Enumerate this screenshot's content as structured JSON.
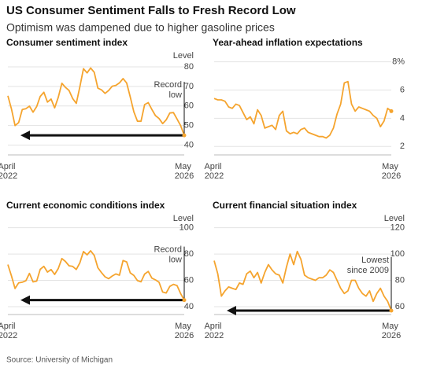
{
  "title": "US Consumer Sentiment Falls to Fresh Record Low",
  "subtitle": "Optimism was dampened due to higher gasoline prices",
  "source": "Source: University of Michigan",
  "chart_data": [
    {
      "type": "line",
      "title": "Consumer sentiment index",
      "unit_label": "Level",
      "categories": [
        "April 2022",
        null,
        null,
        null,
        null,
        null,
        null,
        null,
        null,
        null,
        null,
        null,
        null,
        null,
        null,
        null,
        null,
        null,
        null,
        null,
        null,
        null,
        null,
        null,
        null,
        null,
        null,
        null,
        null,
        null,
        null,
        null,
        null,
        null,
        null,
        null,
        null,
        null,
        null,
        null,
        null,
        null,
        null,
        null,
        null,
        null,
        null,
        null,
        null,
        "May 2026"
      ],
      "values": [
        65.2,
        58.4,
        50.0,
        51.5,
        58.2,
        58.6,
        59.9,
        56.8,
        59.7,
        64.9,
        67.0,
        62.0,
        63.5,
        59.0,
        64.4,
        71.6,
        69.5,
        67.9,
        63.8,
        61.3,
        69.7,
        79.0,
        76.9,
        79.4,
        77.2,
        69.1,
        68.2,
        66.4,
        67.9,
        70.1,
        70.5,
        71.8,
        74.0,
        71.7,
        64.7,
        57.0,
        52.2,
        52.2,
        60.7,
        61.7,
        58.2,
        55.1,
        53.6,
        51.0,
        52.9,
        56.4,
        56.6,
        53.3,
        50.0,
        45.0
      ],
      "color": "#f5a42e",
      "ylim": [
        35,
        84
      ],
      "yticks": [
        40,
        50,
        60,
        70,
        80
      ],
      "grid": true,
      "annotation": [
        "Record",
        "low"
      ]
    },
    {
      "type": "line",
      "title": "Year-ahead inflation expectations",
      "categories": [
        "April 2022",
        null,
        null,
        null,
        null,
        null,
        null,
        null,
        null,
        null,
        null,
        null,
        null,
        null,
        null,
        null,
        null,
        null,
        null,
        null,
        null,
        null,
        null,
        null,
        null,
        null,
        null,
        null,
        null,
        null,
        null,
        null,
        null,
        null,
        null,
        null,
        null,
        null,
        null,
        null,
        null,
        null,
        null,
        null,
        null,
        null,
        null,
        null,
        null,
        "May 2026"
      ],
      "values": [
        5.4,
        5.3,
        5.3,
        5.2,
        4.8,
        4.7,
        5.0,
        4.9,
        4.4,
        3.9,
        4.1,
        3.6,
        4.6,
        4.2,
        3.3,
        3.4,
        3.5,
        3.2,
        4.2,
        4.5,
        3.1,
        2.9,
        3.0,
        2.9,
        3.2,
        3.3,
        3.0,
        2.9,
        2.8,
        2.7,
        2.7,
        2.6,
        2.8,
        3.3,
        4.3,
        5.0,
        6.5,
        6.6,
        5.0,
        4.5,
        4.8,
        4.7,
        4.6,
        4.5,
        4.2,
        4.0,
        3.4,
        3.8,
        4.7,
        4.5
      ],
      "color": "#f5a42e",
      "ylim": [
        1.4,
        8.2
      ],
      "yticks": [
        2,
        4,
        6,
        {
          "value": 8,
          "label": "8%"
        }
      ],
      "grid": true
    },
    {
      "type": "line",
      "title": "Current economic conditions index",
      "unit_label": "Level",
      "categories": [
        "April 2022",
        null,
        null,
        null,
        null,
        null,
        null,
        null,
        null,
        null,
        null,
        null,
        null,
        null,
        null,
        null,
        null,
        null,
        null,
        null,
        null,
        null,
        null,
        null,
        null,
        null,
        null,
        null,
        null,
        null,
        null,
        null,
        null,
        null,
        null,
        null,
        null,
        null,
        null,
        null,
        null,
        null,
        null,
        null,
        null,
        null,
        null,
        null,
        null,
        "May 2026"
      ],
      "values": [
        72.0,
        63.3,
        53.8,
        58.1,
        58.6,
        59.7,
        65.3,
        58.8,
        59.4,
        68.4,
        70.7,
        66.3,
        68.2,
        64.5,
        69.0,
        76.6,
        74.4,
        71.1,
        70.6,
        68.3,
        73.3,
        81.9,
        79.4,
        82.5,
        79.0,
        69.6,
        65.9,
        62.7,
        61.3,
        63.3,
        64.9,
        63.9,
        75.1,
        74.0,
        65.7,
        63.8,
        59.8,
        58.9,
        64.8,
        66.8,
        61.7,
        60.4,
        58.6,
        51.1,
        50.4,
        55.4,
        57.0,
        56.0,
        50.0,
        45.0
      ],
      "color": "#f5a42e",
      "ylim": [
        34,
        104
      ],
      "yticks": [
        40,
        60,
        80,
        100
      ],
      "grid": true,
      "annotation": [
        "Record",
        "low"
      ]
    },
    {
      "type": "line",
      "title": "Current financial situation index",
      "unit_label": "Level",
      "categories": [
        "April 2022",
        null,
        null,
        null,
        null,
        null,
        null,
        null,
        null,
        null,
        null,
        null,
        null,
        null,
        null,
        null,
        null,
        null,
        null,
        null,
        null,
        null,
        null,
        null,
        null,
        null,
        null,
        null,
        null,
        null,
        null,
        null,
        null,
        null,
        null,
        null,
        null,
        null,
        null,
        null,
        null,
        null,
        null,
        null,
        null,
        null,
        null,
        null,
        null,
        "May 2026"
      ],
      "values": [
        95,
        85,
        68,
        72,
        75,
        74,
        73,
        78,
        77,
        85,
        87,
        82,
        86,
        78,
        86,
        92,
        88,
        85,
        84,
        78,
        90,
        100,
        92,
        102,
        96,
        84,
        82,
        81,
        80,
        82,
        82,
        84,
        88,
        86,
        80,
        74,
        70,
        72,
        80,
        80,
        74,
        70,
        68,
        72,
        64,
        70,
        74,
        68,
        64,
        57
      ],
      "color": "#f5a42e",
      "ylim": [
        54,
        124
      ],
      "yticks": [
        60,
        80,
        100,
        120
      ],
      "grid": true,
      "annotation": [
        "Lowest",
        "since 2009"
      ]
    }
  ]
}
